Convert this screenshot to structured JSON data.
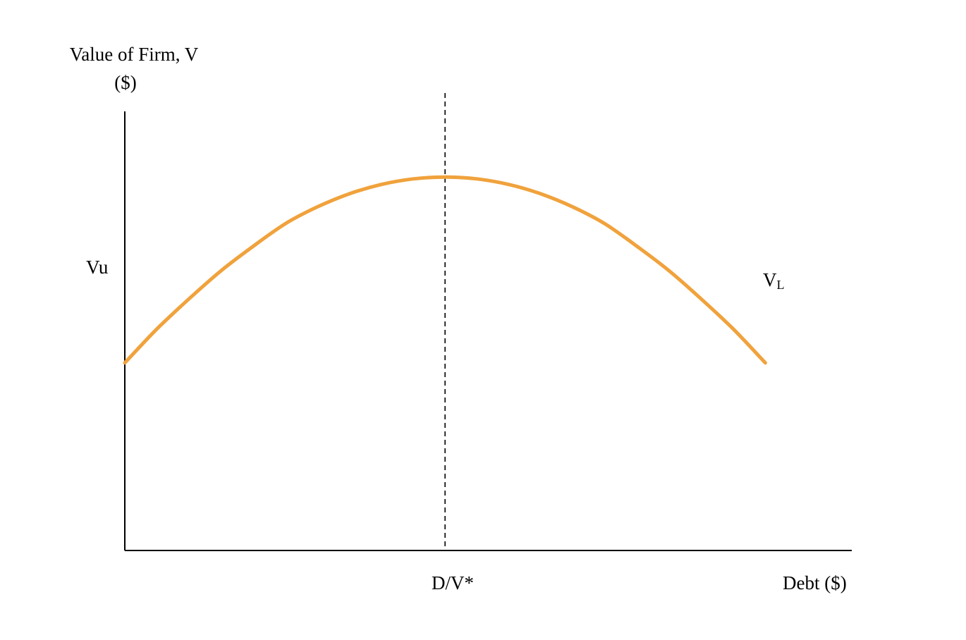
{
  "chart_data": {
    "type": "line",
    "ylabel": "Value of Firm, V",
    "ylabel_unit": "($)",
    "xlabel": "Debt ($)",
    "series": [
      {
        "name": "VL",
        "name_main": "V",
        "name_sub": "L",
        "x": [
          0,
          0.1,
          0.2,
          0.3,
          0.4,
          0.5,
          0.6,
          0.7,
          0.8,
          0.9,
          1.0,
          1.1,
          1.2,
          1.3,
          1.4,
          1.5,
          1.6,
          1.7,
          1.8,
          1.9,
          2.0
        ],
        "y": [
          1.0,
          1.18,
          1.34,
          1.49,
          1.62,
          1.74,
          1.83,
          1.9,
          1.95,
          1.98,
          1.99,
          1.98,
          1.95,
          1.9,
          1.83,
          1.74,
          1.62,
          1.49,
          1.34,
          1.18,
          1.0
        ],
        "color": "#f0a23c"
      }
    ],
    "annotations": [
      {
        "text": "Vu",
        "x": 0,
        "y": 1.0
      },
      {
        "text": "D/V*",
        "x": 1.0,
        "type": "vertical-dashed-line"
      }
    ],
    "xlim": [
      0,
      2.27
    ],
    "ylim": [
      0,
      2.34
    ],
    "grid": false,
    "axis_color": "#000000",
    "dash_color": "#000000"
  }
}
